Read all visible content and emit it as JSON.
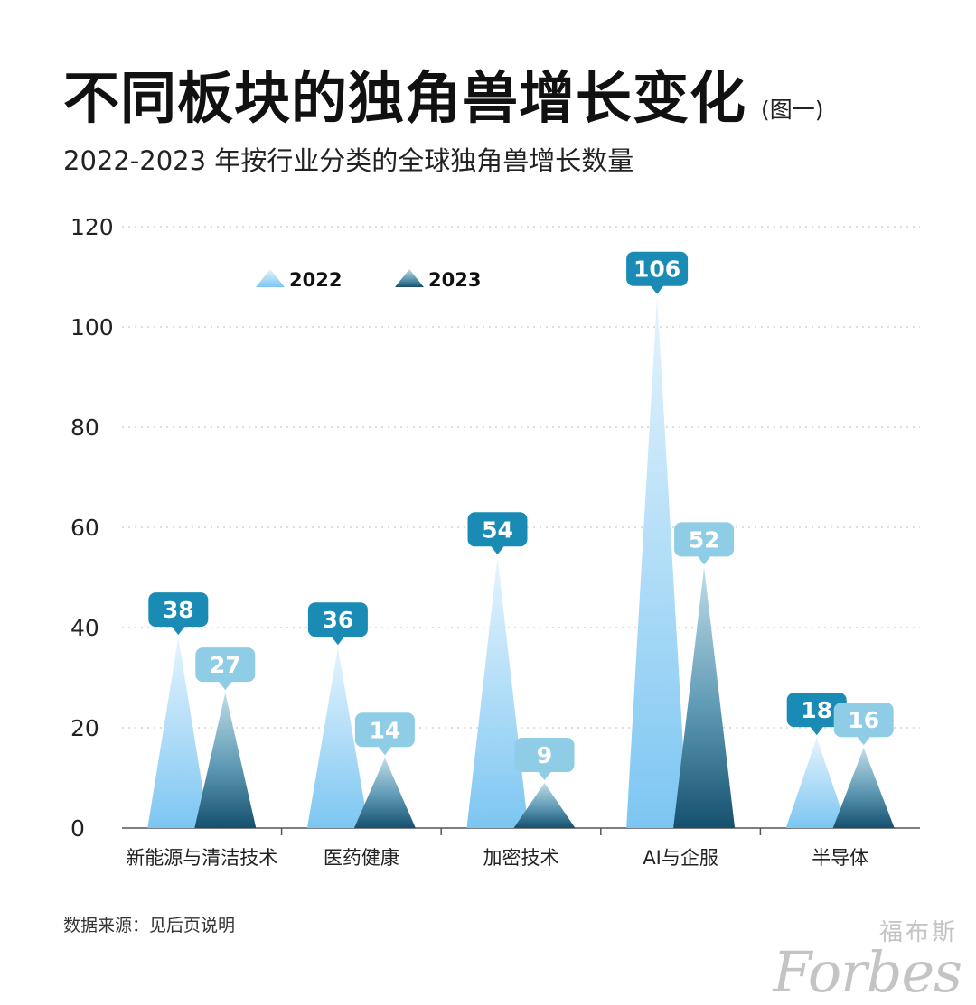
{
  "header": {
    "title": "不同板块的独角兽增长变化",
    "title_note": "(图一)",
    "subtitle": "2022-2023 年按行业分类的全球独角兽增长数量"
  },
  "chart_data": {
    "type": "bar",
    "title": "不同板块的独角兽增长变化",
    "subtitle": "2022-2023 年按行业分类的全球独角兽增长数量",
    "categories": [
      "新能源与清洁技术",
      "医药健康",
      "加密技术",
      "AI与企服",
      "半导体"
    ],
    "series": [
      {
        "name": "2022",
        "values": [
          38,
          36,
          54,
          106,
          18
        ],
        "color": "#7cc6f2",
        "label_color": "#1a8bb5"
      },
      {
        "name": "2023",
        "values": [
          27,
          14,
          9,
          52,
          16
        ],
        "color": "#1e5f86",
        "label_color": "#8fcde6"
      }
    ],
    "ylim": [
      0,
      120
    ],
    "yticks": [
      0,
      20,
      40,
      60,
      80,
      100,
      120
    ],
    "xlabel": "",
    "ylabel": "",
    "grid": true,
    "legend": "top-left"
  },
  "footer": {
    "source": "数据来源：见后页说明",
    "watermark_cn": "福布斯",
    "watermark_en": "Forbes"
  }
}
